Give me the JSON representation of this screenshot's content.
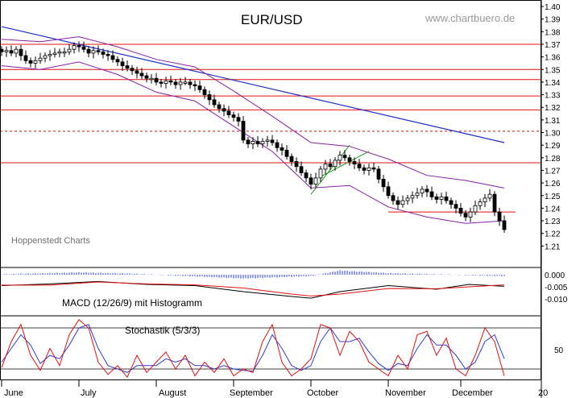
{
  "chart_data": [
    {
      "type": "candlestick",
      "title": "EUR/USD",
      "source": "www.chartbuero.de",
      "watermark": "Hoppenstedt Charts",
      "x_months": [
        "June",
        "July",
        "August",
        "September",
        "October",
        "November",
        "December",
        "20"
      ],
      "y_ticks": [
        "1.40",
        "1.39",
        "1.38",
        "1.37",
        "1.36",
        "1.35",
        "1.34",
        "1.33",
        "1.32",
        "1.31",
        "1.30",
        "1.29",
        "1.28",
        "1.27",
        "1.26",
        "1.25",
        "1.24",
        "1.23",
        "1.22",
        "1.21"
      ],
      "ylim": [
        1.205,
        1.405
      ],
      "close_path": [
        [
          0,
          1.364
        ],
        [
          6,
          1.365
        ],
        [
          12,
          1.363
        ],
        [
          18,
          1.366
        ],
        [
          24,
          1.361
        ],
        [
          30,
          1.357
        ],
        [
          36,
          1.355
        ],
        [
          42,
          1.357
        ],
        [
          48,
          1.359
        ],
        [
          54,
          1.361
        ],
        [
          60,
          1.362
        ],
        [
          66,
          1.363
        ],
        [
          72,
          1.364
        ],
        [
          78,
          1.364
        ],
        [
          84,
          1.366
        ],
        [
          90,
          1.369
        ],
        [
          96,
          1.368
        ],
        [
          102,
          1.366
        ],
        [
          108,
          1.363
        ],
        [
          114,
          1.365
        ],
        [
          120,
          1.364
        ],
        [
          126,
          1.362
        ],
        [
          132,
          1.361
        ],
        [
          138,
          1.358
        ],
        [
          144,
          1.356
        ],
        [
          150,
          1.353
        ],
        [
          156,
          1.351
        ],
        [
          162,
          1.349
        ],
        [
          168,
          1.347
        ],
        [
          174,
          1.345
        ],
        [
          180,
          1.343
        ],
        [
          186,
          1.343
        ],
        [
          192,
          1.34
        ],
        [
          198,
          1.339
        ],
        [
          204,
          1.341
        ],
        [
          210,
          1.34
        ],
        [
          216,
          1.338
        ],
        [
          222,
          1.34
        ],
        [
          228,
          1.34
        ],
        [
          234,
          1.338
        ],
        [
          240,
          1.337
        ],
        [
          246,
          1.334
        ],
        [
          252,
          1.33
        ],
        [
          258,
          1.326
        ],
        [
          264,
          1.322
        ],
        [
          270,
          1.319
        ],
        [
          276,
          1.317
        ],
        [
          282,
          1.314
        ],
        [
          288,
          1.312
        ],
        [
          294,
          1.309
        ],
        [
          300,
          1.294
        ],
        [
          306,
          1.291
        ],
        [
          312,
          1.293
        ],
        [
          318,
          1.291
        ],
        [
          324,
          1.293
        ],
        [
          330,
          1.294
        ],
        [
          336,
          1.292
        ],
        [
          342,
          1.288
        ],
        [
          348,
          1.286
        ],
        [
          354,
          1.281
        ],
        [
          360,
          1.277
        ],
        [
          366,
          1.273
        ],
        [
          372,
          1.268
        ],
        [
          378,
          1.264
        ],
        [
          384,
          1.259
        ],
        [
          390,
          1.264
        ],
        [
          396,
          1.271
        ],
        [
          402,
          1.275
        ],
        [
          408,
          1.273
        ],
        [
          414,
          1.278
        ],
        [
          420,
          1.282
        ],
        [
          426,
          1.28
        ],
        [
          432,
          1.277
        ],
        [
          438,
          1.275
        ],
        [
          444,
          1.272
        ],
        [
          450,
          1.27
        ],
        [
          456,
          1.272
        ],
        [
          462,
          1.271
        ],
        [
          468,
          1.263
        ],
        [
          474,
          1.257
        ],
        [
          480,
          1.25
        ],
        [
          486,
          1.246
        ],
        [
          492,
          1.243
        ],
        [
          498,
          1.246
        ],
        [
          504,
          1.248
        ],
        [
          510,
          1.25
        ],
        [
          516,
          1.252
        ],
        [
          522,
          1.255
        ],
        [
          528,
          1.253
        ],
        [
          534,
          1.249
        ],
        [
          540,
          1.247
        ],
        [
          546,
          1.249
        ],
        [
          552,
          1.246
        ],
        [
          558,
          1.243
        ],
        [
          564,
          1.24
        ],
        [
          570,
          1.236
        ],
        [
          576,
          1.233
        ],
        [
          582,
          1.237
        ],
        [
          588,
          1.242
        ],
        [
          594,
          1.245
        ],
        [
          600,
          1.248
        ],
        [
          606,
          1.251
        ],
        [
          612,
          1.237
        ],
        [
          618,
          1.23
        ],
        [
          624,
          1.223
        ]
      ],
      "band_upper": [
        [
          0,
          1.374
        ],
        [
          48,
          1.372
        ],
        [
          96,
          1.376
        ],
        [
          144,
          1.368
        ],
        [
          192,
          1.358
        ],
        [
          240,
          1.352
        ],
        [
          288,
          1.333
        ],
        [
          336,
          1.313
        ],
        [
          384,
          1.292
        ],
        [
          432,
          1.289
        ],
        [
          480,
          1.279
        ],
        [
          528,
          1.266
        ],
        [
          576,
          1.262
        ],
        [
          624,
          1.256
        ]
      ],
      "band_lower": [
        [
          0,
          1.353
        ],
        [
          48,
          1.35
        ],
        [
          96,
          1.356
        ],
        [
          144,
          1.346
        ],
        [
          192,
          1.332
        ],
        [
          240,
          1.325
        ],
        [
          288,
          1.305
        ],
        [
          336,
          1.285
        ],
        [
          384,
          1.256
        ],
        [
          432,
          1.258
        ],
        [
          480,
          1.241
        ],
        [
          528,
          1.233
        ],
        [
          576,
          1.228
        ],
        [
          624,
          1.23
        ]
      ],
      "trendline": [
        [
          0,
          1.384
        ],
        [
          624,
          1.292
        ]
      ],
      "horizontal_levels": [
        1.37,
        1.35,
        1.342,
        1.329,
        1.318,
        1.276
      ],
      "dashed_levels": [
        1.301
      ],
      "short_level": {
        "x0": 480,
        "x1": 638,
        "y": 1.237
      },
      "channel": [
        [
          [
            384,
            1.251
          ],
          [
            432,
            1.29
          ]
        ],
        [
          [
            396,
            1.265
          ],
          [
            456,
            1.285
          ]
        ]
      ]
    },
    {
      "type": "line",
      "title": "MACD (12/26/9) mit Histogramm",
      "y_ticks": [
        "0.000",
        "-0.005",
        "-0.010"
      ],
      "ylim": [
        -0.013,
        0.002
      ],
      "macd": [
        [
          0,
          -0.0045
        ],
        [
          60,
          -0.0038
        ],
        [
          120,
          -0.0028
        ],
        [
          180,
          -0.004
        ],
        [
          240,
          -0.0045
        ],
        [
          300,
          -0.007
        ],
        [
          360,
          -0.009
        ],
        [
          384,
          -0.0097
        ],
        [
          420,
          -0.007
        ],
        [
          480,
          -0.0045
        ],
        [
          540,
          -0.006
        ],
        [
          580,
          -0.004
        ],
        [
          624,
          -0.0048
        ]
      ],
      "signal": [
        [
          0,
          -0.0043
        ],
        [
          60,
          -0.0043
        ],
        [
          120,
          -0.003
        ],
        [
          180,
          -0.0038
        ],
        [
          240,
          -0.0042
        ],
        [
          300,
          -0.0055
        ],
        [
          360,
          -0.008
        ],
        [
          384,
          -0.0088
        ],
        [
          420,
          -0.008
        ],
        [
          480,
          -0.0057
        ],
        [
          540,
          -0.0058
        ],
        [
          580,
          -0.005
        ],
        [
          624,
          -0.0042
        ]
      ],
      "histogram_top": [
        [
          0,
          0.0002
        ],
        [
          96,
          0.001
        ],
        [
          160,
          0.0005
        ],
        [
          300,
          -0.0015
        ],
        [
          384,
          -0.0005
        ],
        [
          420,
          0.0018
        ],
        [
          480,
          0.0007
        ],
        [
          540,
          0.0002
        ],
        [
          624,
          -0.0005
        ]
      ]
    },
    {
      "type": "line",
      "title": "Stochastik (5/3/3)",
      "y_ticks": [
        "50"
      ],
      "ylim": [
        0,
        100
      ],
      "reference_levels": [
        80,
        20
      ],
      "k_line": [
        [
          0,
          22
        ],
        [
          12,
          60
        ],
        [
          24,
          85
        ],
        [
          36,
          40
        ],
        [
          48,
          18
        ],
        [
          60,
          50
        ],
        [
          72,
          25
        ],
        [
          84,
          70
        ],
        [
          96,
          92
        ],
        [
          108,
          80
        ],
        [
          120,
          30
        ],
        [
          132,
          12
        ],
        [
          144,
          25
        ],
        [
          156,
          8
        ],
        [
          168,
          40
        ],
        [
          180,
          15
        ],
        [
          192,
          30
        ],
        [
          204,
          45
        ],
        [
          216,
          20
        ],
        [
          228,
          40
        ],
        [
          240,
          10
        ],
        [
          252,
          30
        ],
        [
          264,
          15
        ],
        [
          276,
          35
        ],
        [
          288,
          10
        ],
        [
          300,
          20
        ],
        [
          312,
          15
        ],
        [
          324,
          60
        ],
        [
          336,
          85
        ],
        [
          348,
          30
        ],
        [
          360,
          10
        ],
        [
          372,
          20
        ],
        [
          384,
          35
        ],
        [
          396,
          85
        ],
        [
          408,
          80
        ],
        [
          420,
          40
        ],
        [
          432,
          75
        ],
        [
          444,
          60
        ],
        [
          456,
          30
        ],
        [
          468,
          20
        ],
        [
          480,
          10
        ],
        [
          492,
          40
        ],
        [
          504,
          20
        ],
        [
          516,
          70
        ],
        [
          528,
          75
        ],
        [
          540,
          40
        ],
        [
          552,
          65
        ],
        [
          564,
          20
        ],
        [
          576,
          10
        ],
        [
          588,
          40
        ],
        [
          600,
          80
        ],
        [
          612,
          60
        ],
        [
          624,
          10
        ]
      ],
      "d_line": [
        [
          0,
          30
        ],
        [
          12,
          50
        ],
        [
          24,
          70
        ],
        [
          36,
          55
        ],
        [
          48,
          28
        ],
        [
          60,
          40
        ],
        [
          72,
          35
        ],
        [
          84,
          55
        ],
        [
          96,
          80
        ],
        [
          108,
          85
        ],
        [
          120,
          50
        ],
        [
          132,
          25
        ],
        [
          144,
          20
        ],
        [
          156,
          15
        ],
        [
          168,
          25
        ],
        [
          180,
          25
        ],
        [
          192,
          25
        ],
        [
          204,
          35
        ],
        [
          216,
          30
        ],
        [
          228,
          35
        ],
        [
          240,
          25
        ],
        [
          252,
          25
        ],
        [
          264,
          20
        ],
        [
          276,
          25
        ],
        [
          288,
          20
        ],
        [
          300,
          18
        ],
        [
          312,
          17
        ],
        [
          324,
          40
        ],
        [
          336,
          70
        ],
        [
          348,
          50
        ],
        [
          360,
          25
        ],
        [
          372,
          18
        ],
        [
          384,
          25
        ],
        [
          396,
          60
        ],
        [
          408,
          80
        ],
        [
          420,
          60
        ],
        [
          432,
          60
        ],
        [
          444,
          65
        ],
        [
          456,
          45
        ],
        [
          468,
          28
        ],
        [
          480,
          18
        ],
        [
          492,
          28
        ],
        [
          504,
          25
        ],
        [
          516,
          50
        ],
        [
          528,
          70
        ],
        [
          540,
          55
        ],
        [
          552,
          55
        ],
        [
          564,
          40
        ],
        [
          576,
          20
        ],
        [
          588,
          30
        ],
        [
          600,
          60
        ],
        [
          612,
          70
        ],
        [
          624,
          35
        ]
      ]
    }
  ]
}
